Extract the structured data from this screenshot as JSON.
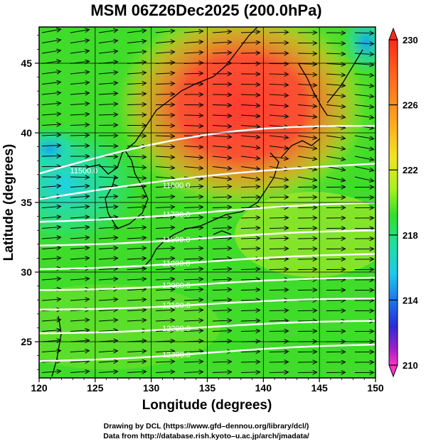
{
  "title": "MSM 06Z26Dec2025 (200.0hPa)",
  "x_axis": {
    "label": "Longitude (degrees)",
    "ticks": [
      120,
      125,
      130,
      135,
      140,
      145,
      150
    ],
    "range": [
      120,
      150
    ]
  },
  "y_axis": {
    "label": "Latitude  (degrees)",
    "ticks": [
      25,
      30,
      35,
      40,
      45
    ],
    "range": [
      22.4,
      47.6
    ]
  },
  "colorbar": {
    "min": 210,
    "max": 230,
    "ticks": [
      "230",
      "226",
      "222",
      "218",
      "214",
      "210"
    ],
    "tick_values": [
      230,
      226,
      222,
      218,
      214,
      210
    ]
  },
  "contours": [
    {
      "label": "11500.0",
      "value": 11500,
      "lat_west": 37.0,
      "lat_east": 40.5
    },
    {
      "label": "11600.0",
      "value": 11600,
      "lat_west": 35.2,
      "lat_east": 37.8
    },
    {
      "label": "11700.0",
      "value": 11700,
      "lat_west": 33.6,
      "lat_east": 35.0
    },
    {
      "label": "11800.0",
      "value": 11800,
      "lat_west": 31.9,
      "lat_east": 33.0
    },
    {
      "label": "11900.0",
      "value": 11900,
      "lat_west": 30.2,
      "lat_east": 31.3
    },
    {
      "label": "12000.0",
      "value": 12000,
      "lat_west": 28.7,
      "lat_east": 29.6
    },
    {
      "label": "12100.0",
      "value": 12100,
      "lat_west": 27.3,
      "lat_east": 28.1
    },
    {
      "label": "12200.0",
      "value": 12200,
      "lat_west": 25.6,
      "lat_east": 26.5
    },
    {
      "label": "12300.0",
      "value": 12300,
      "lat_west": 23.6,
      "lat_east": 24.8
    }
  ],
  "credits": {
    "line1": "Drawing by DCL (https://www.gfd–dennou.org/library/dcl/)",
    "line2": "Data from http://database.rish.kyoto–u.ac.jp/arch/jmadata/"
  }
}
